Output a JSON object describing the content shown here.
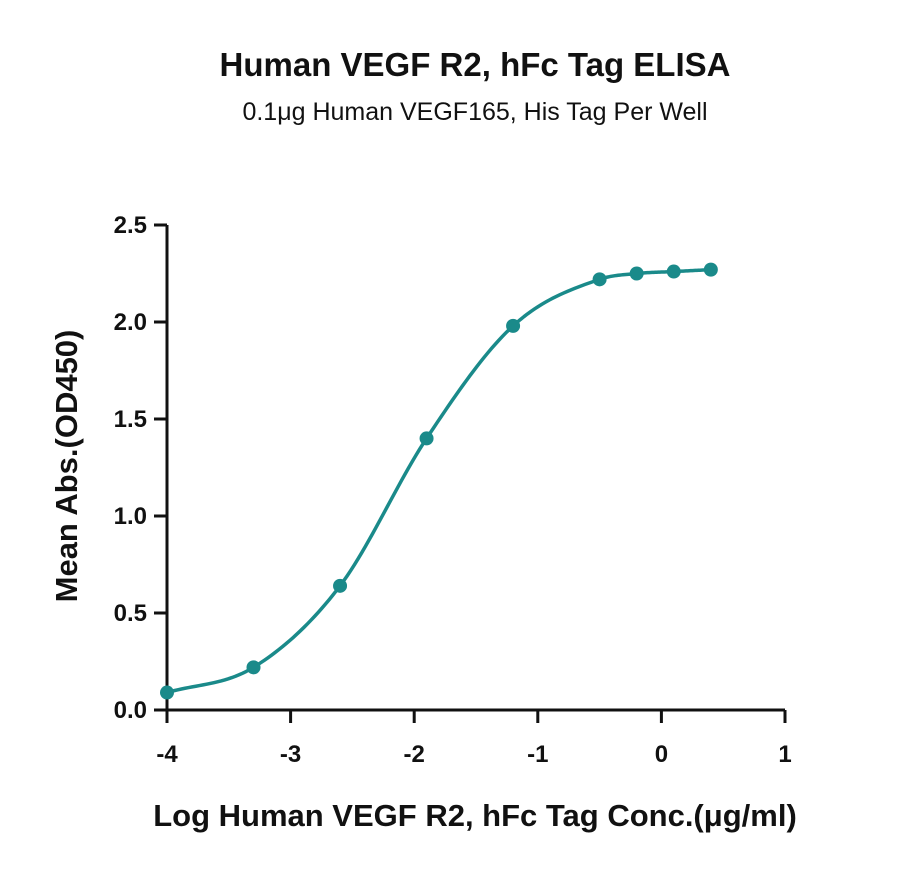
{
  "chart_data": {
    "type": "scatter",
    "title": "Human VEGF R2, hFc Tag ELISA",
    "subtitle": "0.1μg Human VEGF165, His Tag Per Well",
    "xlabel": "Log Human VEGF R2, hFc Tag Conc.(μg/ml)",
    "ylabel": "Mean Abs.(OD450)",
    "xlim": [
      -4,
      1
    ],
    "ylim": [
      0,
      2.5
    ],
    "xticks": [
      -4,
      -3,
      -2,
      -1,
      0,
      1
    ],
    "xtick_labels": [
      "-4",
      "-3",
      "-2",
      "-1",
      "0",
      "1"
    ],
    "yticks": [
      0,
      0.5,
      1.0,
      1.5,
      2.0,
      2.5
    ],
    "ytick_labels": [
      "0.0",
      "0.5",
      "1.0",
      "1.5",
      "2.0",
      "2.5"
    ],
    "grid": false,
    "fit": "4PL sigmoidal curve",
    "series": [
      {
        "x": [
          -4.0,
          -3.3,
          -2.6,
          -1.9,
          -1.2,
          -0.5,
          -0.2,
          0.1,
          0.4
        ],
        "y": [
          0.09,
          0.22,
          0.64,
          1.4,
          1.98,
          2.22,
          2.25,
          2.26,
          2.27
        ]
      }
    ],
    "colors": {
      "series": "#1a8a8a",
      "axis": "#111111"
    }
  }
}
